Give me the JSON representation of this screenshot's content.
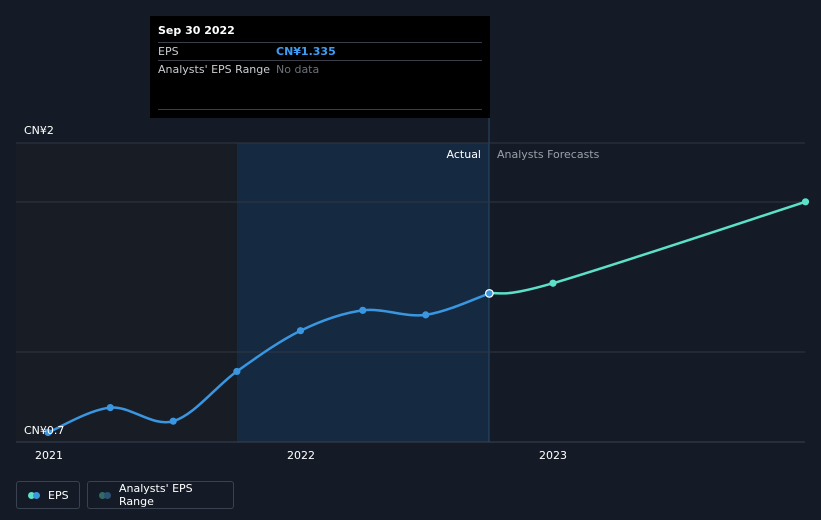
{
  "chart_data": {
    "type": "line",
    "y_top_label": "CN¥2",
    "y_bottom_label": "CN¥0.7",
    "ylim": [
      0.7,
      2.0
    ],
    "x_ticks": [
      "2021",
      "2022",
      "2023"
    ],
    "actual_label": "Actual",
    "forecast_label": "Analysts Forecasts",
    "series": [
      {
        "name": "EPS",
        "kind": "actual",
        "color": "#3a96e0",
        "points": [
          {
            "x": "2021-01-01",
            "y": 0.72
          },
          {
            "x": "2021-04-01",
            "y": 0.83
          },
          {
            "x": "2021-07-01",
            "y": 0.77
          },
          {
            "x": "2021-10-01",
            "y": 0.99
          },
          {
            "x": "2022-01-01",
            "y": 1.17
          },
          {
            "x": "2022-04-01",
            "y": 1.26
          },
          {
            "x": "2022-07-01",
            "y": 1.24
          },
          {
            "x": "2022-10-01",
            "y": 1.335
          }
        ]
      },
      {
        "name": "EPS Forecast",
        "kind": "forecast",
        "color": "#5de0c8",
        "points": [
          {
            "x": "2022-10-01",
            "y": 1.335
          },
          {
            "x": "2023-01-01",
            "y": 1.38
          },
          {
            "x": "2024-01-01",
            "y": 1.74
          }
        ]
      }
    ]
  },
  "tooltip": {
    "date": "Sep 30 2022",
    "eps_label": "EPS",
    "eps_value": "CN¥1.335",
    "range_label": "Analysts' EPS Range",
    "range_value": "No data"
  },
  "legend": {
    "eps_label": "EPS",
    "range_label": "Analysts' EPS Range",
    "eps_colors": [
      "#5de0c8",
      "#3a96e0"
    ],
    "range_colors": [
      "#2e6b68",
      "#2b5273"
    ]
  },
  "colors": {
    "background": "#151b26",
    "shaded_past": "#181c24",
    "shaded_actual": "#152a40",
    "gridline": "#2f3642"
  }
}
